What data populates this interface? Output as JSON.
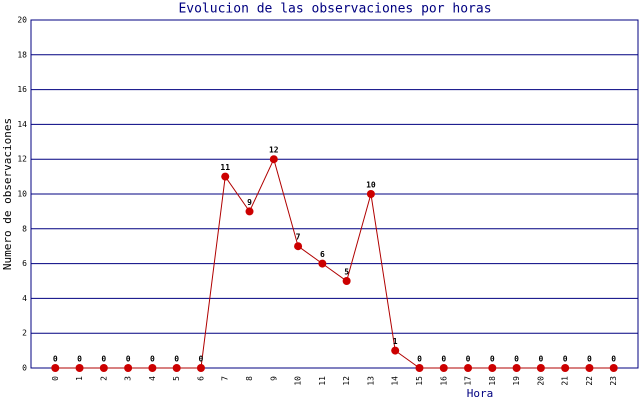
{
  "chart_data": {
    "type": "line",
    "title": "Evolucion de las observaciones por horas",
    "x_label": "Hora",
    "y_label": "Numero de observaciones",
    "categories": [
      "0",
      "1",
      "2",
      "3",
      "4",
      "5",
      "6",
      "7",
      "8",
      "9",
      "10",
      "11",
      "12",
      "13",
      "14",
      "15",
      "16",
      "17",
      "18",
      "19",
      "20",
      "21",
      "22",
      "23"
    ],
    "series": [
      {
        "name": "observaciones",
        "color": "#b00000",
        "values": [
          0,
          0,
          0,
          0,
          0,
          0,
          0,
          11,
          9,
          12,
          7,
          6,
          5,
          10,
          1,
          0,
          0,
          0,
          0,
          0,
          0,
          0,
          0,
          0
        ]
      }
    ],
    "ylim": [
      0,
      20
    ],
    "yticks": [
      0,
      2,
      4,
      6,
      8,
      10,
      12,
      14,
      16,
      18,
      20
    ],
    "grid": true
  }
}
